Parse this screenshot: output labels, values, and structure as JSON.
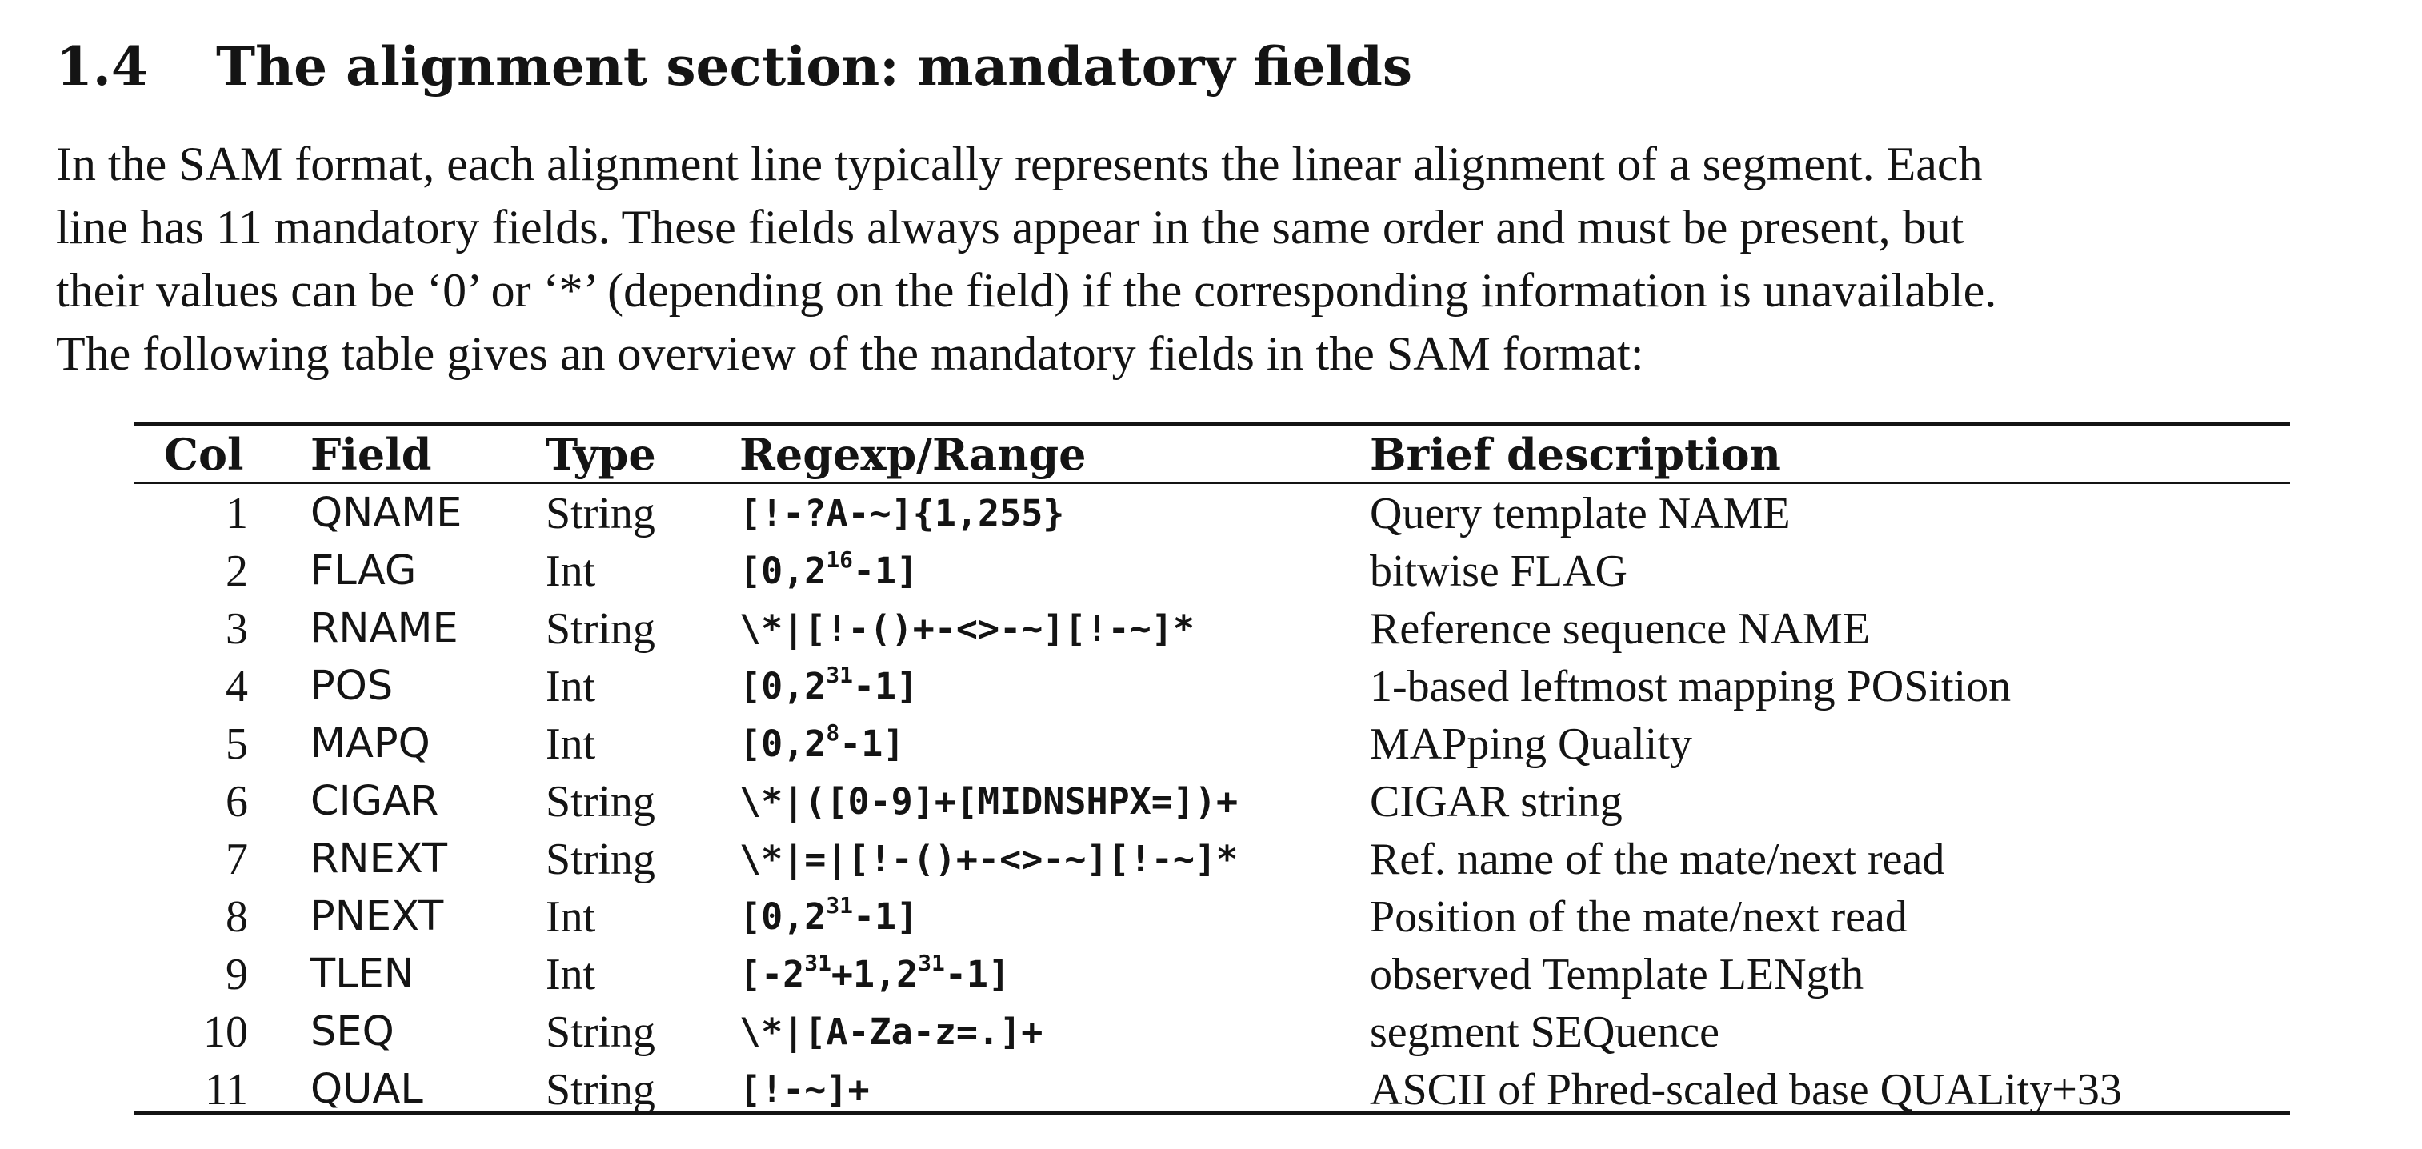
{
  "section": {
    "number": "1.4",
    "title": "The alignment section: mandatory fields"
  },
  "intro": {
    "lines": [
      "In the SAM format, each alignment line typically represents the linear alignment of a segment. Each",
      "line has 11 mandatory fields. These fields always appear in the same order and must be present, but",
      "their values can be ‘0’ or ‘*’ (depending on the field) if the corresponding information is unavailable.",
      "The following table gives an overview of the mandatory fields in the SAM format:"
    ]
  },
  "table": {
    "headers": {
      "col": "Col",
      "field": "Field",
      "type": "Type",
      "regex": "Regexp/Range",
      "desc": "Brief description"
    },
    "rows": [
      {
        "col": "1",
        "field": "QNAME",
        "type": "String",
        "regex": {
          "pre": "[!-?A-~]{1,255}"
        },
        "desc": "Query template NAME"
      },
      {
        "col": "2",
        "field": "FLAG",
        "type": "Int",
        "regex": {
          "pre": "[0,2",
          "sup": "16",
          "post": "-1]"
        },
        "desc": "bitwise FLAG"
      },
      {
        "col": "3",
        "field": "RNAME",
        "type": "String",
        "regex": {
          "pre": "\\*|[!-()+-<>-~][!-~]*"
        },
        "desc": "Reference sequence NAME"
      },
      {
        "col": "4",
        "field": "POS",
        "type": "Int",
        "regex": {
          "pre": "[0,2",
          "sup": "31",
          "post": "-1]"
        },
        "desc": "1-based leftmost mapping POSition"
      },
      {
        "col": "5",
        "field": "MAPQ",
        "type": "Int",
        "regex": {
          "pre": "[0,2",
          "sup": "8",
          "post": "-1]"
        },
        "desc": "MAPping Quality"
      },
      {
        "col": "6",
        "field": "CIGAR",
        "type": "String",
        "regex": {
          "pre": "\\*|([0-9]+[MIDNSHPX=])+"
        },
        "desc": "CIGAR string"
      },
      {
        "col": "7",
        "field": "RNEXT",
        "type": "String",
        "regex": {
          "pre": "\\*|=|[!-()+-<>-~][!-~]*"
        },
        "desc": "Ref. name of the mate/next read"
      },
      {
        "col": "8",
        "field": "PNEXT",
        "type": "Int",
        "regex": {
          "pre": "[0,2",
          "sup": "31",
          "post": "-1]"
        },
        "desc": "Position of the mate/next read"
      },
      {
        "col": "9",
        "field": "TLEN",
        "type": "Int",
        "regex": {
          "pre": "[-2",
          "sup": "31",
          "mid": "+1,2",
          "sup2": "31",
          "post": "-1]"
        },
        "desc": "observed Template LENgth"
      },
      {
        "col": "10",
        "field": "SEQ",
        "type": "String",
        "regex": {
          "pre": "\\*|[A-Za-z=.]+"
        },
        "desc": "segment SEQuence"
      },
      {
        "col": "11",
        "field": "QUAL",
        "type": "String",
        "regex": {
          "pre": "[!-~]+"
        },
        "desc": "ASCII of Phred-scaled base QUALity+33"
      }
    ]
  }
}
